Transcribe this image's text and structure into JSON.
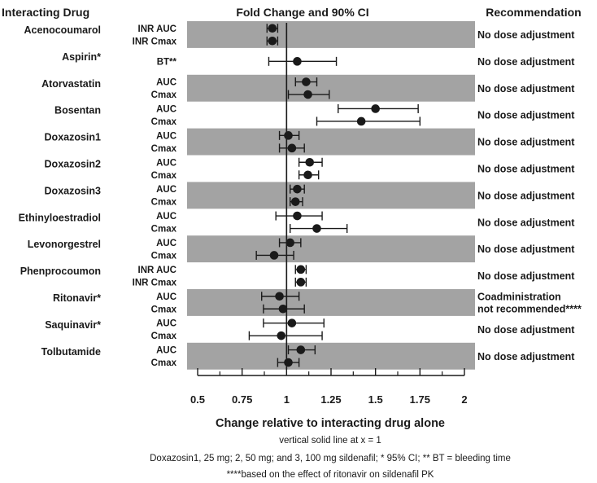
{
  "chart_data": {
    "type": "forest",
    "headers": {
      "drug": "Interacting Drug",
      "plot": "Fold Change and 90% CI",
      "recommendation": "Recommendation"
    },
    "xlabel": "Change relative to interacting drug alone",
    "xlim": [
      0.5,
      2
    ],
    "ticks": [
      0.5,
      0.75,
      1,
      1.25,
      1.5,
      1.75,
      2
    ],
    "tick_labels": [
      "0.5",
      "0.75",
      "1",
      "1.25",
      "1.5",
      "1.75",
      "2"
    ],
    "reference_line": 1,
    "notes": [
      "vertical solid line at x = 1",
      "Doxazosin1, 25 mg; 2, 50 mg; and 3, 100 mg sildenafil; * 95% CI; ** BT = bleeding time",
      "****based on the effect of ritonavir on sildenafil PK"
    ],
    "groups": [
      {
        "drug": "Acenocoumarol",
        "shaded": true,
        "recommendation": [
          "No dose adjustment"
        ],
        "rows": [
          {
            "metric": "INR AUC",
            "est": 0.92,
            "lo": 0.89,
            "hi": 0.95
          },
          {
            "metric": "INR Cmax",
            "est": 0.92,
            "lo": 0.89,
            "hi": 0.95
          }
        ]
      },
      {
        "drug": "Aspirin*",
        "shaded": false,
        "recommendation": [
          "No dose adjustment"
        ],
        "rows": [
          {
            "metric": "BT**",
            "est": 1.06,
            "lo": 0.9,
            "hi": 1.28
          }
        ]
      },
      {
        "drug": "Atorvastatin",
        "shaded": true,
        "recommendation": [
          "No dose adjustment"
        ],
        "rows": [
          {
            "metric": "AUC",
            "est": 1.11,
            "lo": 1.05,
            "hi": 1.17
          },
          {
            "metric": "Cmax",
            "est": 1.12,
            "lo": 1.01,
            "hi": 1.24
          }
        ]
      },
      {
        "drug": "Bosentan",
        "shaded": false,
        "recommendation": [
          "No dose adjustment"
        ],
        "rows": [
          {
            "metric": "AUC",
            "est": 1.5,
            "lo": 1.29,
            "hi": 1.74
          },
          {
            "metric": "Cmax",
            "est": 1.42,
            "lo": 1.17,
            "hi": 1.75
          }
        ]
      },
      {
        "drug": "Doxazosin1",
        "shaded": true,
        "recommendation": [
          "No dose adjustment"
        ],
        "rows": [
          {
            "metric": "AUC",
            "est": 1.01,
            "lo": 0.96,
            "hi": 1.07
          },
          {
            "metric": "Cmax",
            "est": 1.03,
            "lo": 0.96,
            "hi": 1.1
          }
        ]
      },
      {
        "drug": "Doxazosin2",
        "shaded": false,
        "recommendation": [
          "No dose adjustment"
        ],
        "rows": [
          {
            "metric": "AUC",
            "est": 1.13,
            "lo": 1.07,
            "hi": 1.2
          },
          {
            "metric": "Cmax",
            "est": 1.12,
            "lo": 1.07,
            "hi": 1.18
          }
        ]
      },
      {
        "drug": "Doxazosin3",
        "shaded": true,
        "recommendation": [
          "No dose adjustment"
        ],
        "rows": [
          {
            "metric": "AUC",
            "est": 1.06,
            "lo": 1.02,
            "hi": 1.1
          },
          {
            "metric": "Cmax",
            "est": 1.05,
            "lo": 1.02,
            "hi": 1.09
          }
        ]
      },
      {
        "drug": "Ethinyloestradiol",
        "shaded": false,
        "recommendation": [
          "No dose adjustment"
        ],
        "rows": [
          {
            "metric": "AUC",
            "est": 1.06,
            "lo": 0.94,
            "hi": 1.2
          },
          {
            "metric": "Cmax",
            "est": 1.17,
            "lo": 1.02,
            "hi": 1.34
          }
        ]
      },
      {
        "drug": "Levonorgestrel",
        "shaded": true,
        "recommendation": [
          "No dose adjustment"
        ],
        "rows": [
          {
            "metric": "AUC",
            "est": 1.02,
            "lo": 0.96,
            "hi": 1.08
          },
          {
            "metric": "Cmax",
            "est": 0.93,
            "lo": 0.83,
            "hi": 1.04
          }
        ]
      },
      {
        "drug": "Phenprocoumon",
        "shaded": false,
        "recommendation": [
          "No dose adjustment"
        ],
        "rows": [
          {
            "metric": "INR AUC",
            "est": 1.08,
            "lo": 1.05,
            "hi": 1.11
          },
          {
            "metric": "INR Cmax",
            "est": 1.08,
            "lo": 1.05,
            "hi": 1.11
          }
        ]
      },
      {
        "drug": "Ritonavir*",
        "shaded": true,
        "recommendation": [
          "Coadministration",
          "not recommended****"
        ],
        "rows": [
          {
            "metric": "AUC",
            "est": 0.96,
            "lo": 0.86,
            "hi": 1.07
          },
          {
            "metric": "Cmax",
            "est": 0.98,
            "lo": 0.87,
            "hi": 1.1
          }
        ]
      },
      {
        "drug": "Saquinavir*",
        "shaded": false,
        "recommendation": [
          "No dose adjustment"
        ],
        "rows": [
          {
            "metric": "AUC",
            "est": 1.03,
            "lo": 0.87,
            "hi": 1.21
          },
          {
            "metric": "Cmax",
            "est": 0.97,
            "lo": 0.79,
            "hi": 1.2
          }
        ]
      },
      {
        "drug": "Tolbutamide",
        "shaded": true,
        "recommendation": [
          "No dose adjustment"
        ],
        "rows": [
          {
            "metric": "AUC",
            "est": 1.08,
            "lo": 1.01,
            "hi": 1.16
          },
          {
            "metric": "Cmax",
            "est": 1.01,
            "lo": 0.95,
            "hi": 1.07
          }
        ]
      }
    ]
  }
}
